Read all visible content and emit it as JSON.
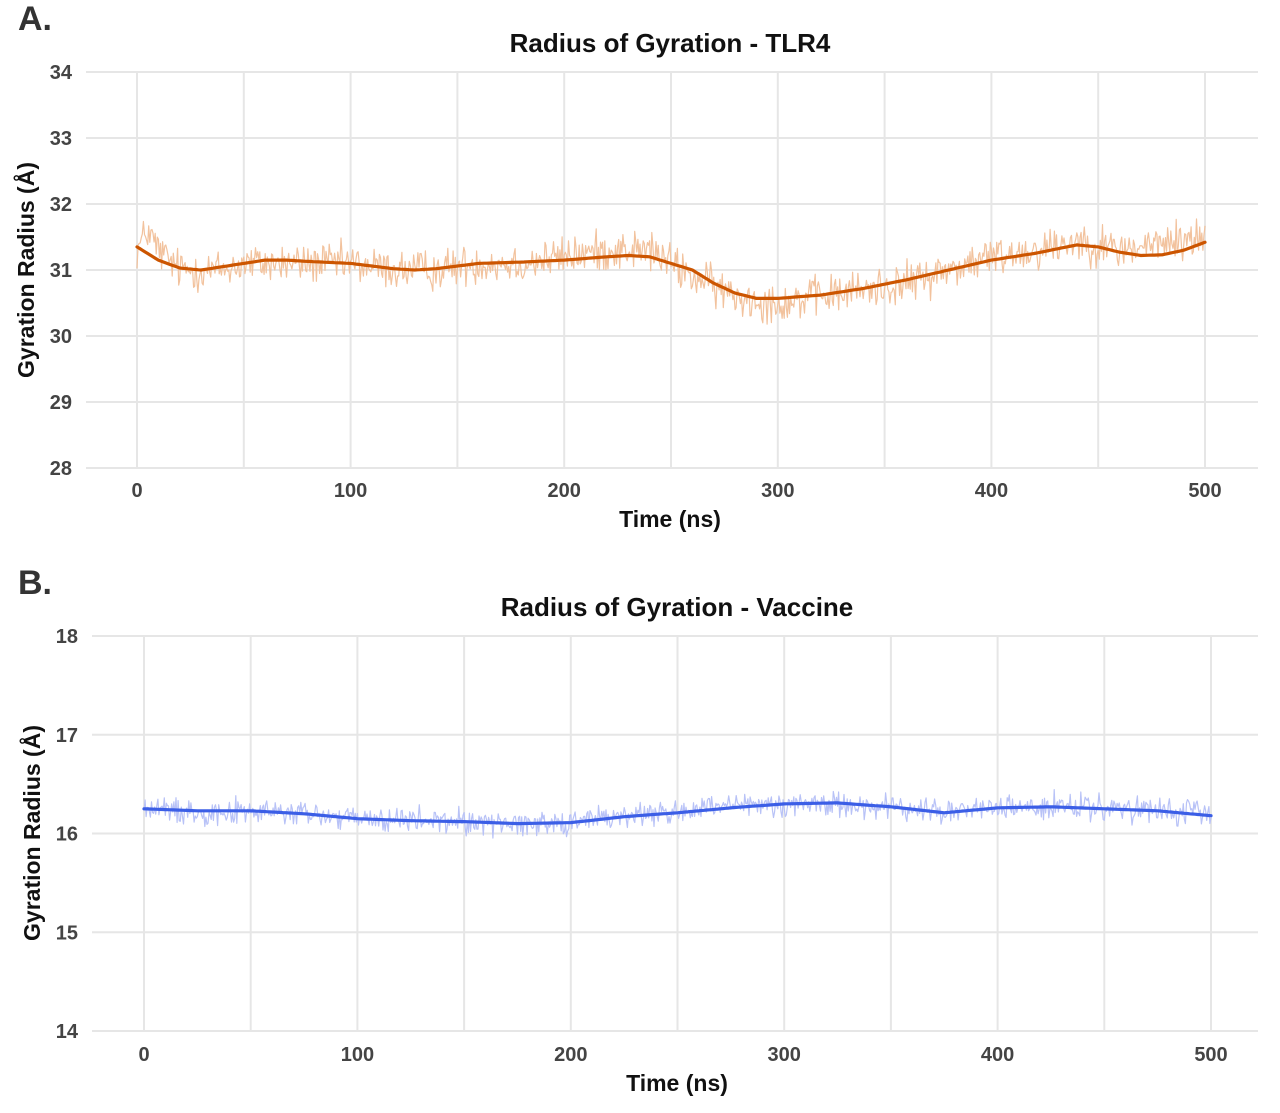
{
  "chart_data": [
    {
      "panel": "A.",
      "type": "line",
      "title": "Radius of Gyration - TLR4",
      "xlabel": "Time (ns)",
      "ylabel": "Gyration Radius (Å)",
      "xlim": [
        0,
        500
      ],
      "ylim": [
        28,
        34
      ],
      "xticks": [
        "0",
        "100",
        "200",
        "300",
        "400",
        "500"
      ],
      "yticks": [
        "28",
        "29",
        "30",
        "31",
        "32",
        "33",
        "34"
      ],
      "grid": true,
      "series": [
        {
          "role": "raw",
          "color": "#f2c29d",
          "noise": 0.28,
          "x": [
            0,
            5,
            10,
            20,
            30,
            40,
            50,
            60,
            70,
            80,
            100,
            120,
            140,
            160,
            180,
            200,
            220,
            240,
            260,
            280,
            300,
            320,
            340,
            360,
            380,
            400,
            420,
            440,
            460,
            480,
            500
          ],
          "y": [
            31.3,
            31.6,
            31.3,
            31.0,
            31.0,
            31.0,
            31.1,
            31.1,
            31.1,
            31.1,
            31.1,
            31.0,
            31.0,
            31.1,
            31.1,
            31.2,
            31.3,
            31.3,
            30.9,
            30.6,
            30.5,
            30.6,
            30.7,
            30.8,
            31.0,
            31.2,
            31.3,
            31.45,
            31.3,
            31.4,
            31.5
          ]
        },
        {
          "role": "smooth",
          "color": "#cc5500",
          "x": [
            0,
            10,
            20,
            30,
            40,
            50,
            60,
            70,
            80,
            100,
            120,
            130,
            140,
            160,
            180,
            200,
            220,
            230,
            240,
            260,
            270,
            280,
            290,
            300,
            320,
            340,
            360,
            380,
            400,
            420,
            440,
            450,
            460,
            470,
            480,
            490,
            500
          ],
          "y": [
            31.35,
            31.15,
            31.03,
            31.0,
            31.05,
            31.1,
            31.15,
            31.15,
            31.13,
            31.1,
            31.02,
            31.0,
            31.02,
            31.1,
            31.12,
            31.15,
            31.2,
            31.22,
            31.2,
            31.0,
            30.8,
            30.65,
            30.57,
            30.57,
            30.62,
            30.72,
            30.85,
            31.0,
            31.15,
            31.25,
            31.38,
            31.35,
            31.27,
            31.22,
            31.23,
            31.3,
            31.42
          ]
        }
      ]
    },
    {
      "panel": "B.",
      "type": "line",
      "title": "Radius of Gyration - Vaccine",
      "xlabel": "Time (ns)",
      "ylabel": "Gyration Radius (Å)",
      "xlim": [
        0,
        500
      ],
      "ylim": [
        14,
        18
      ],
      "xticks": [
        "0",
        "100",
        "200",
        "300",
        "400",
        "500"
      ],
      "yticks": [
        "14",
        "15",
        "16",
        "17",
        "18"
      ],
      "grid": true,
      "series": [
        {
          "role": "raw",
          "color": "#b8c2f7",
          "noise": 0.12,
          "x": [
            0,
            25,
            50,
            75,
            100,
            125,
            150,
            175,
            200,
            225,
            250,
            275,
            300,
            325,
            350,
            375,
            400,
            425,
            450,
            475,
            500
          ],
          "y": [
            16.25,
            16.22,
            16.22,
            16.2,
            16.14,
            16.13,
            16.12,
            16.1,
            16.12,
            16.18,
            16.22,
            16.27,
            16.3,
            16.3,
            16.26,
            16.22,
            16.26,
            16.27,
            16.25,
            16.22,
            16.2
          ]
        },
        {
          "role": "smooth",
          "color": "#3b5ee6",
          "x": [
            0,
            25,
            50,
            75,
            100,
            125,
            150,
            175,
            200,
            225,
            250,
            275,
            300,
            325,
            350,
            375,
            400,
            425,
            450,
            475,
            500
          ],
          "y": [
            16.25,
            16.23,
            16.23,
            16.2,
            16.15,
            16.13,
            16.12,
            16.1,
            16.11,
            16.17,
            16.21,
            16.26,
            16.3,
            16.31,
            16.27,
            16.21,
            16.26,
            16.27,
            16.25,
            16.23,
            16.18
          ]
        }
      ]
    }
  ]
}
